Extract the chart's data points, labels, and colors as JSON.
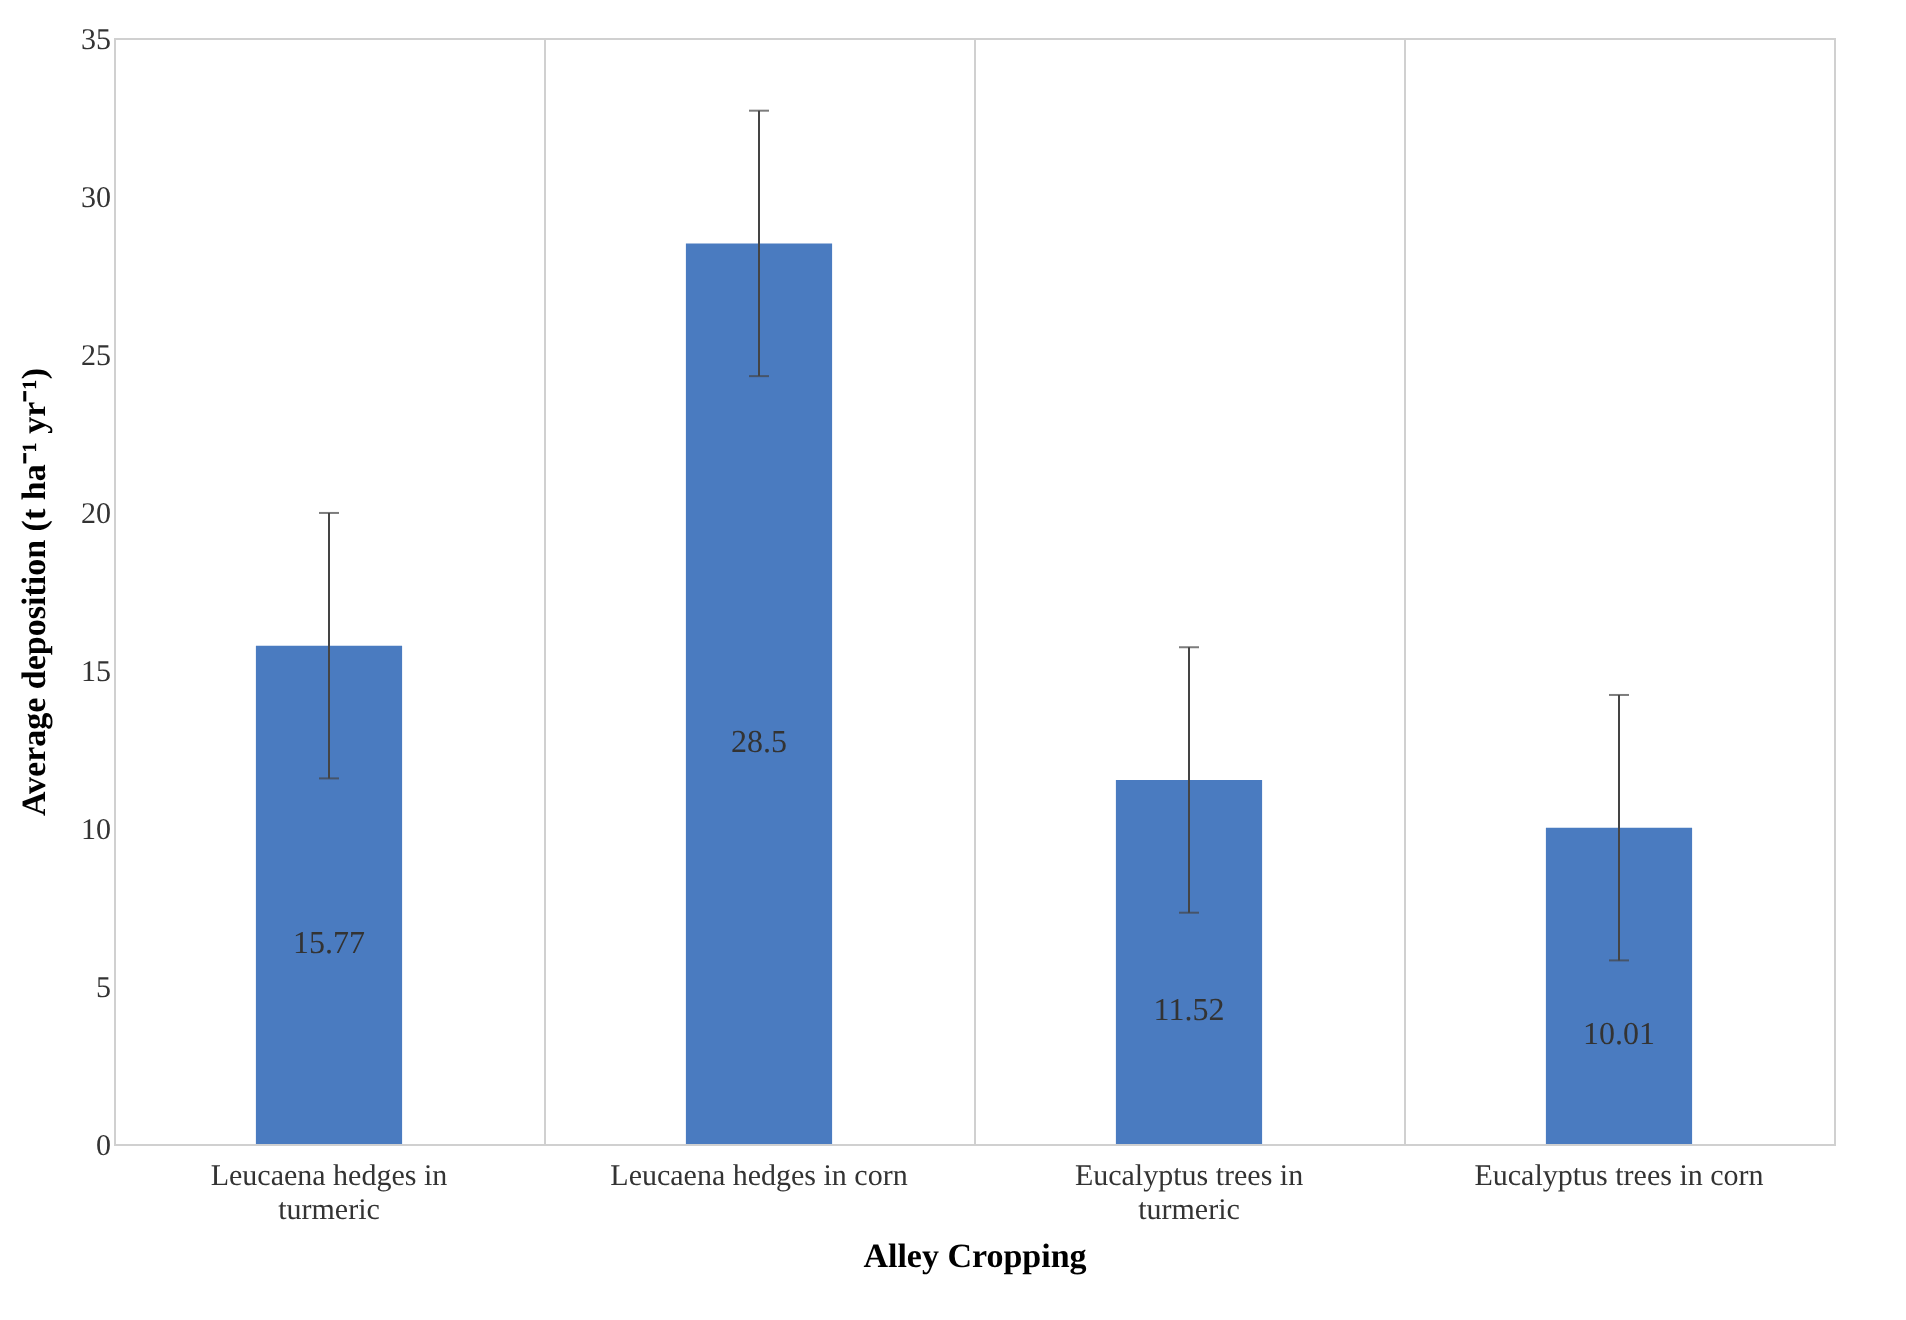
{
  "chart_data": {
    "type": "bar",
    "xlabel": "Alley Cropping",
    "ylabel": "Average deposition (t ha⁻¹ yr⁻¹)",
    "categories": [
      "Leucaena hedges in turmeric",
      "Leucaena hedges in corn",
      "Eucalyptus trees in turmeric",
      "Eucalyptus trees in corn"
    ],
    "values": [
      15.77,
      28.5,
      11.52,
      10.01
    ],
    "errors": [
      4.2,
      4.2,
      4.2,
      4.2
    ],
    "color": "#4a7bc0",
    "ylim": [
      0,
      35
    ],
    "yticks": [
      0,
      5,
      10,
      15,
      20,
      25,
      30,
      35
    ],
    "grid": "x",
    "data_labels": true
  }
}
